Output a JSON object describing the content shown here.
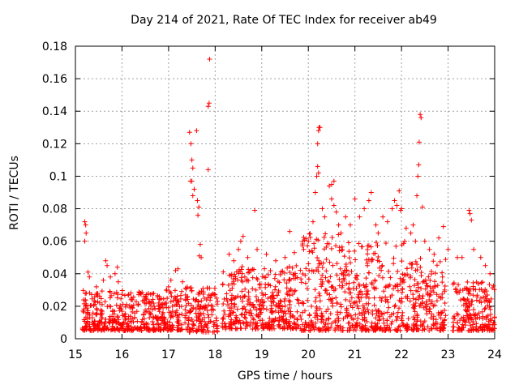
{
  "chart_data": {
    "type": "scatter",
    "title": "Day 214 of 2021, Rate Of TEC Index for receiver ab49",
    "xlabel": "GPS time / hours",
    "ylabel": "ROTI / TECUs",
    "xlim": [
      15,
      24
    ],
    "ylim": [
      0,
      0.18
    ],
    "xticks": [
      "15",
      "16",
      "17",
      "18",
      "19",
      "20",
      "21",
      "22",
      "23",
      "24"
    ],
    "yticks": [
      "0",
      "0.02",
      "0.04",
      "0.06",
      "0.08",
      "0.1",
      "0.12",
      "0.14",
      "0.16",
      "0.18"
    ],
    "grid": true,
    "marker": "+",
    "series": [
      {
        "name": "ROTI",
        "color": "#ff0000",
        "points": [
          [
            15.2,
            0.072
          ],
          [
            15.22,
            0.07
          ],
          [
            15.23,
            0.065
          ],
          [
            15.2,
            0.06
          ],
          [
            15.27,
            0.041
          ],
          [
            15.3,
            0.038
          ],
          [
            15.45,
            0.032
          ],
          [
            15.6,
            0.036
          ],
          [
            15.65,
            0.048
          ],
          [
            15.68,
            0.045
          ],
          [
            15.75,
            0.038
          ],
          [
            15.85,
            0.04
          ],
          [
            15.9,
            0.044
          ],
          [
            15.92,
            0.035
          ],
          [
            16.2,
            0.025
          ],
          [
            16.4,
            0.028
          ],
          [
            16.6,
            0.022
          ],
          [
            16.8,
            0.026
          ],
          [
            16.95,
            0.03
          ],
          [
            17.0,
            0.032
          ],
          [
            17.05,
            0.036
          ],
          [
            17.15,
            0.042
          ],
          [
            17.2,
            0.043
          ],
          [
            17.3,
            0.035
          ],
          [
            17.45,
            0.127
          ],
          [
            17.48,
            0.12
          ],
          [
            17.5,
            0.11
          ],
          [
            17.52,
            0.105
          ],
          [
            17.47,
            0.097
          ],
          [
            17.5,
            0.097
          ],
          [
            17.55,
            0.092
          ],
          [
            17.52,
            0.088
          ],
          [
            17.6,
            0.128
          ],
          [
            17.62,
            0.085
          ],
          [
            17.65,
            0.081
          ],
          [
            17.63,
            0.076
          ],
          [
            17.68,
            0.058
          ],
          [
            17.66,
            0.051
          ],
          [
            17.7,
            0.05
          ],
          [
            17.85,
            0.143
          ],
          [
            17.87,
            0.145
          ],
          [
            17.88,
            0.172
          ],
          [
            17.85,
            0.104
          ],
          [
            18.3,
            0.052
          ],
          [
            18.4,
            0.048
          ],
          [
            18.5,
            0.055
          ],
          [
            18.55,
            0.06
          ],
          [
            18.6,
            0.063
          ],
          [
            18.7,
            0.05
          ],
          [
            18.85,
            0.079
          ],
          [
            18.9,
            0.055
          ],
          [
            19.1,
            0.052
          ],
          [
            19.3,
            0.048
          ],
          [
            19.5,
            0.05
          ],
          [
            19.6,
            0.066
          ],
          [
            19.7,
            0.053
          ],
          [
            19.9,
            0.055
          ],
          [
            20.0,
            0.06
          ],
          [
            20.1,
            0.072
          ],
          [
            20.15,
            0.09
          ],
          [
            20.18,
            0.1
          ],
          [
            20.2,
            0.106
          ],
          [
            20.22,
            0.102
          ],
          [
            20.2,
            0.12
          ],
          [
            20.22,
            0.128
          ],
          [
            20.25,
            0.13
          ],
          [
            20.23,
            0.13
          ],
          [
            20.3,
            0.08
          ],
          [
            20.35,
            0.075
          ],
          [
            20.45,
            0.094
          ],
          [
            20.5,
            0.095
          ],
          [
            20.55,
            0.097
          ],
          [
            20.5,
            0.086
          ],
          [
            20.55,
            0.082
          ],
          [
            20.6,
            0.078
          ],
          [
            20.65,
            0.07
          ],
          [
            20.7,
            0.065
          ],
          [
            20.8,
            0.075
          ],
          [
            20.9,
            0.07
          ],
          [
            21.0,
            0.086
          ],
          [
            21.1,
            0.075
          ],
          [
            21.2,
            0.08
          ],
          [
            21.3,
            0.085
          ],
          [
            21.35,
            0.09
          ],
          [
            21.45,
            0.07
          ],
          [
            21.5,
            0.065
          ],
          [
            21.6,
            0.075
          ],
          [
            21.7,
            0.072
          ],
          [
            21.8,
            0.08
          ],
          [
            21.85,
            0.085
          ],
          [
            21.9,
            0.082
          ],
          [
            21.95,
            0.091
          ],
          [
            21.98,
            0.079
          ],
          [
            22.0,
            0.08
          ],
          [
            22.1,
            0.068
          ],
          [
            22.2,
            0.065
          ],
          [
            22.25,
            0.07
          ],
          [
            22.3,
            0.06
          ],
          [
            22.33,
            0.088
          ],
          [
            22.35,
            0.1
          ],
          [
            22.37,
            0.107
          ],
          [
            22.38,
            0.121
          ],
          [
            22.4,
            0.138
          ],
          [
            22.42,
            0.136
          ],
          [
            22.45,
            0.081
          ],
          [
            22.5,
            0.06
          ],
          [
            22.6,
            0.055
          ],
          [
            22.7,
            0.052
          ],
          [
            22.8,
            0.062
          ],
          [
            22.9,
            0.069
          ],
          [
            23.0,
            0.055
          ],
          [
            23.2,
            0.05
          ],
          [
            23.3,
            0.05
          ],
          [
            23.45,
            0.079
          ],
          [
            23.47,
            0.077
          ],
          [
            23.5,
            0.073
          ],
          [
            23.55,
            0.055
          ],
          [
            23.7,
            0.05
          ],
          [
            23.8,
            0.045
          ],
          [
            23.9,
            0.04
          ]
        ],
        "dense_band": [
          {
            "x": [
              15.15,
              17.3
            ],
            "y": [
              0.005,
              0.03
            ]
          },
          {
            "x": [
              17.35,
              18.05
            ],
            "y": [
              0.004,
              0.032
            ]
          },
          {
            "x": [
              18.15,
              19.85
            ],
            "y": [
              0.006,
              0.045
            ]
          },
          {
            "x": [
              19.85,
              20.9
            ],
            "y": [
              0.005,
              0.065
            ]
          },
          {
            "x": [
              20.9,
              22.1
            ],
            "y": [
              0.005,
              0.06
            ]
          },
          {
            "x": [
              22.1,
              22.95
            ],
            "y": [
              0.005,
              0.05
            ]
          },
          {
            "x": [
              23.1,
              24.0
            ],
            "y": [
              0.005,
              0.035
            ]
          }
        ]
      }
    ]
  }
}
